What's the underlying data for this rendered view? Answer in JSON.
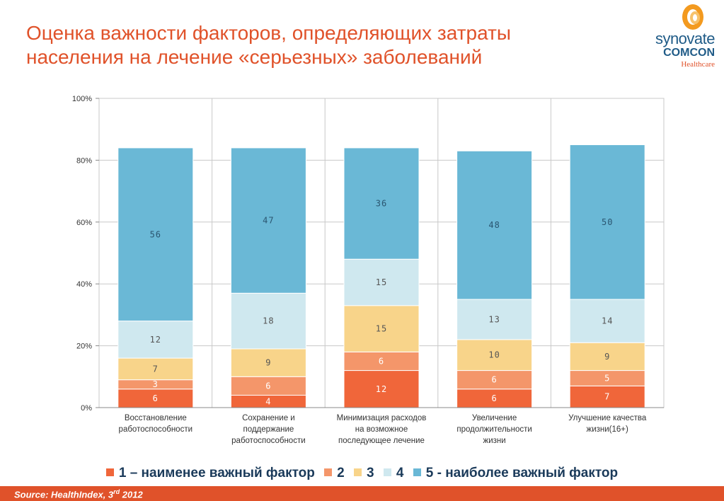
{
  "title": "Оценка важности факторов, определяющих затраты населения на лечение «серьезных» заболеваний",
  "logo": {
    "name": "synovate",
    "sub": "COMCON",
    "tag": "Healthcare"
  },
  "source": {
    "prefix": "Source: HealthIndex, 3",
    "sup": "rd",
    "suffix": "  2012"
  },
  "legend": [
    {
      "label": "1 – наименее важный фактор",
      "color": "#f0663a"
    },
    {
      "label": "2",
      "color": "#f4966a"
    },
    {
      "label": "3",
      "color": "#f8d48a"
    },
    {
      "label": "4",
      "color": "#cfe8ef"
    },
    {
      "label": "5 - наиболее важный фактор",
      "color": "#6ab8d6"
    }
  ],
  "chart_data": {
    "type": "bar",
    "stacked": true,
    "categories": [
      [
        "Восстановление",
        "работоспособности"
      ],
      [
        "Сохранение и",
        "поддержание",
        "работоспособности"
      ],
      [
        "Минимизация расходов",
        "на возможное",
        "последующее лечение"
      ],
      [
        "Увеличение",
        "продолжительности",
        "жизни"
      ],
      [
        "Улучшение качества",
        "жизни(16+)"
      ]
    ],
    "series": [
      {
        "name": "1 – наименее важный фактор",
        "values": [
          6,
          4,
          12,
          6,
          7
        ],
        "color": "#f0663a",
        "label_color": "#ffffff"
      },
      {
        "name": "2",
        "values": [
          3,
          6,
          6,
          6,
          5
        ],
        "color": "#f4966a",
        "label_color": "#ffffff"
      },
      {
        "name": "3",
        "values": [
          7,
          9,
          15,
          10,
          9
        ],
        "color": "#f8d48a",
        "label_color": "#555555"
      },
      {
        "name": "4",
        "values": [
          12,
          18,
          15,
          13,
          14
        ],
        "color": "#cfe8ef",
        "label_color": "#555555"
      },
      {
        "name": "5 - наиболее важный фактор",
        "values": [
          56,
          47,
          36,
          48,
          50
        ],
        "color": "#6ab8d6",
        "label_color": "#2a5570"
      }
    ],
    "yticks": [
      "0%",
      "20%",
      "40%",
      "60%",
      "80%",
      "100%"
    ],
    "ylim": [
      0,
      100
    ],
    "grid": true
  }
}
